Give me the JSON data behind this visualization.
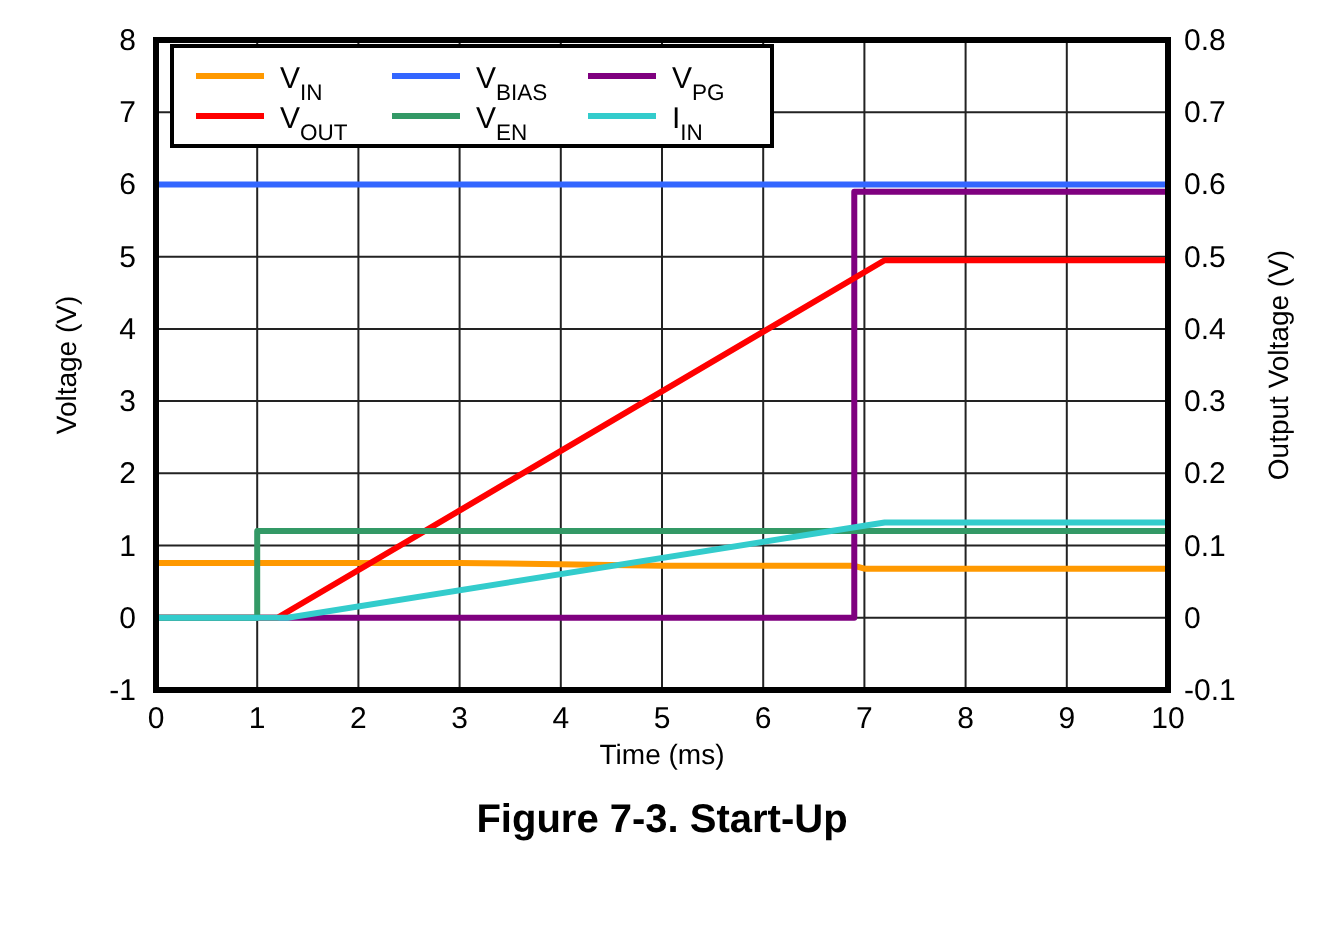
{
  "chart_data": {
    "type": "line",
    "title": "Figure 7-3. Start-Up",
    "xlabel": "Time (ms)",
    "ylabel": "Voltage (V)",
    "y2label": "Output Voltage (V)",
    "xlim": [
      0,
      10
    ],
    "xticks": [
      0,
      1,
      2,
      3,
      4,
      5,
      6,
      7,
      8,
      9,
      10
    ],
    "ylim": [
      -1,
      8
    ],
    "yticks": [
      -1,
      0,
      1,
      2,
      3,
      4,
      5,
      6,
      7,
      8
    ],
    "y2lim": [
      -0.1,
      0.8
    ],
    "y2ticks": [
      -0.1,
      0,
      0.1,
      0.2,
      0.3,
      0.4,
      0.5,
      0.6,
      0.7,
      0.8
    ],
    "grid": true,
    "legend": "top left",
    "line_style": "solid",
    "series": [
      {
        "name": "V$_{IN}$",
        "color": "#ff9900",
        "x": [
          0,
          3,
          5,
          6.9,
          7,
          10
        ],
        "values": [
          0.76,
          0.76,
          0.72,
          0.72,
          0.68,
          0.68
        ]
      },
      {
        "name": "V$_{BIAS}$",
        "color": "#3366ff",
        "x": [
          0,
          10
        ],
        "values": [
          6,
          6
        ]
      },
      {
        "name": "V$_{PG}$",
        "color": "#7f007f",
        "x": [
          0,
          6.9,
          6.9,
          10
        ],
        "values": [
          0,
          0,
          5.9,
          5.9
        ]
      },
      {
        "name": "V$_{OUT}$",
        "color": "#ff0000",
        "axis": "y2",
        "x": [
          0,
          1.2,
          7.2,
          10
        ],
        "values": [
          0,
          0,
          0.495,
          0.495
        ]
      },
      {
        "name": "V$_{EN}$",
        "color": "#339966",
        "x": [
          0,
          1,
          1,
          10
        ],
        "values": [
          0,
          0,
          1.2,
          1.2
        ]
      },
      {
        "name": "I$_{IN}$",
        "color": "#33cccc",
        "x": [
          0,
          1.3,
          7.2,
          10
        ],
        "values": [
          0,
          0,
          1.32,
          1.32
        ]
      }
    ]
  }
}
